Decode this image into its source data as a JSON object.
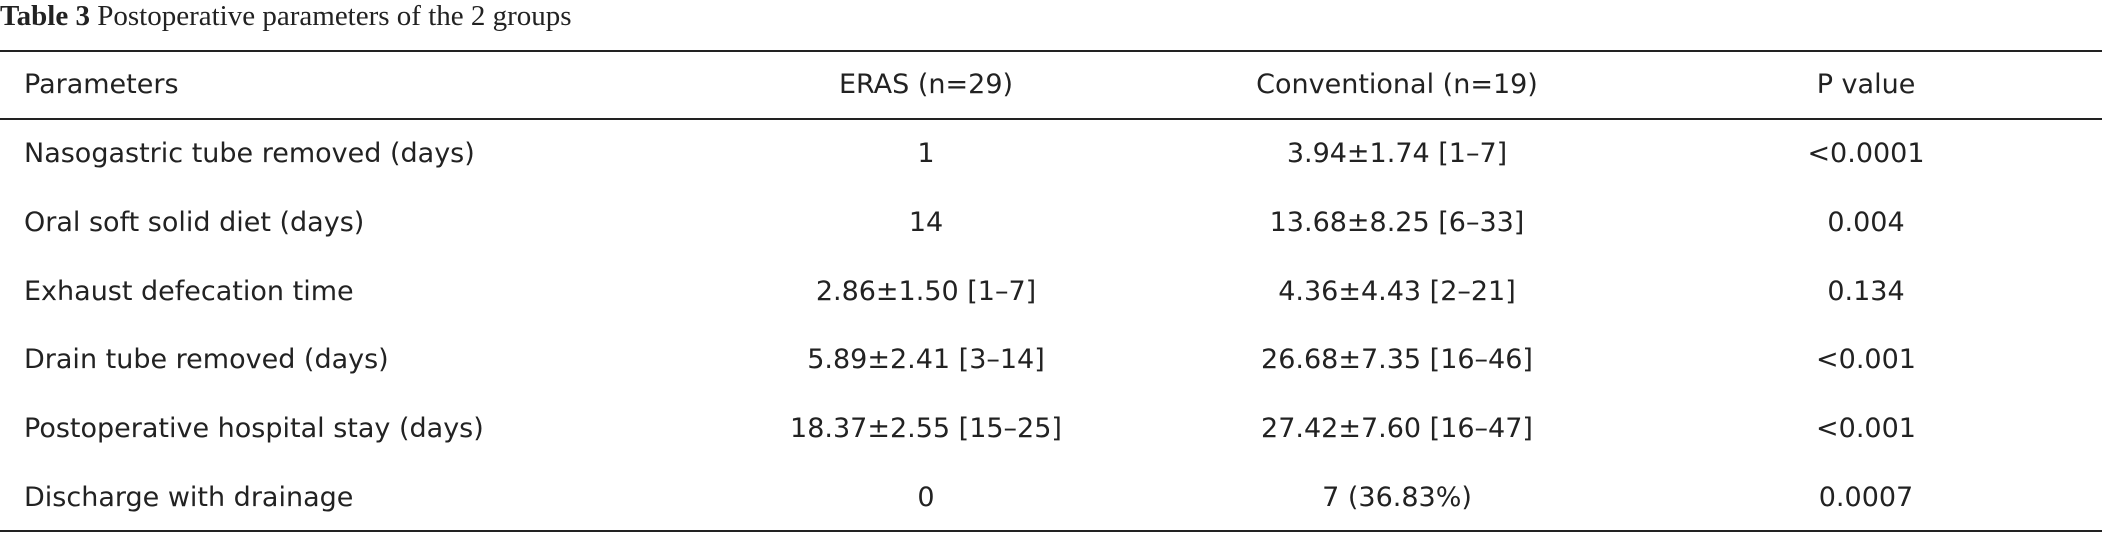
{
  "title": {
    "label": "Table 3",
    "text": "Postoperative parameters of the 2 groups"
  },
  "table": {
    "header": [
      "Parameters",
      "ERAS (n=29)",
      "Conventional (n=19)",
      "P value"
    ],
    "rows": [
      [
        "Nasogastric tube removed (days)",
        "1",
        "3.94±1.74 [1–7]",
        "<0.0001"
      ],
      [
        "Oral soft solid diet (days)",
        "14",
        "13.68±8.25 [6–33]",
        "0.004"
      ],
      [
        "Exhaust defecation time",
        "2.86±1.50 [1–7]",
        "4.36±4.43 [2–21]",
        "0.134"
      ],
      [
        "Drain tube removed (days)",
        "5.89±2.41 [3–14]",
        "26.68±7.35 [16–46]",
        "<0.001"
      ],
      [
        "Postoperative hospital stay (days)",
        "18.37±2.55 [15–25]",
        "27.42±7.60 [16–47]",
        "<0.001"
      ],
      [
        "Discharge with drainage",
        "0",
        "7 (36.83%)",
        "0.0007"
      ]
    ]
  }
}
